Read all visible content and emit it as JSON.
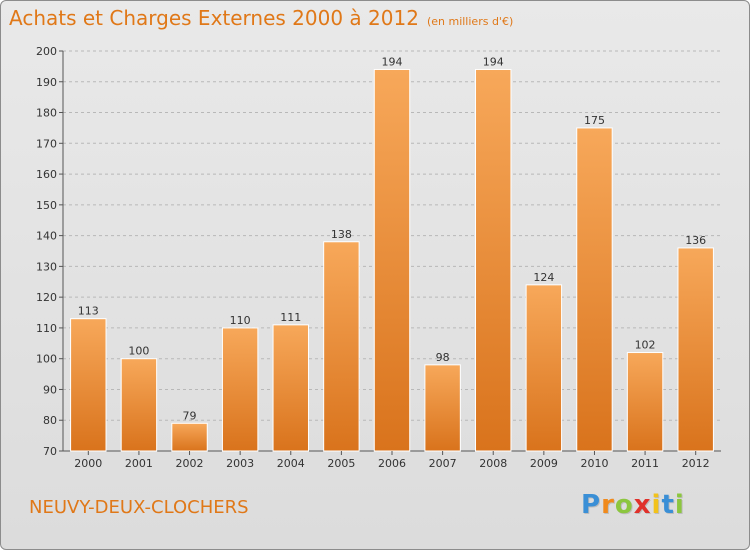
{
  "header": {
    "title": "Achats et Charges Externes 2000 à 2012",
    "subtitle": "(en milliers d'€)"
  },
  "footer": {
    "commune": "NEUVY-DEUX-CLOCHERS",
    "logo_letters": [
      "P",
      "r",
      "o",
      "x",
      "i",
      "t",
      "i"
    ],
    "logo_colors": [
      "#3a8fd6",
      "#f08a1c",
      "#8cc63f",
      "#e0312b",
      "#f2c21b",
      "#3a8fd6",
      "#8cc63f"
    ]
  },
  "colors": {
    "accent": "#e07818",
    "bar_light": "#f7a85a",
    "bar_dark": "#d9731c",
    "grid": "#b8b8b8"
  },
  "chart_data": {
    "type": "bar",
    "title": "Achats et Charges Externes 2000 à 2012",
    "subtitle": "(en milliers d'€)",
    "categories": [
      "2000",
      "2001",
      "2002",
      "2003",
      "2004",
      "2005",
      "2006",
      "2007",
      "2008",
      "2009",
      "2010",
      "2011",
      "2012"
    ],
    "values": [
      113,
      100,
      79,
      110,
      111,
      138,
      194,
      98,
      194,
      124,
      175,
      102,
      136
    ],
    "ylim": [
      70,
      200
    ],
    "yticks": [
      70,
      80,
      90,
      100,
      110,
      120,
      130,
      140,
      150,
      160,
      170,
      180,
      190,
      200
    ],
    "grid": true,
    "data_labels": true
  }
}
